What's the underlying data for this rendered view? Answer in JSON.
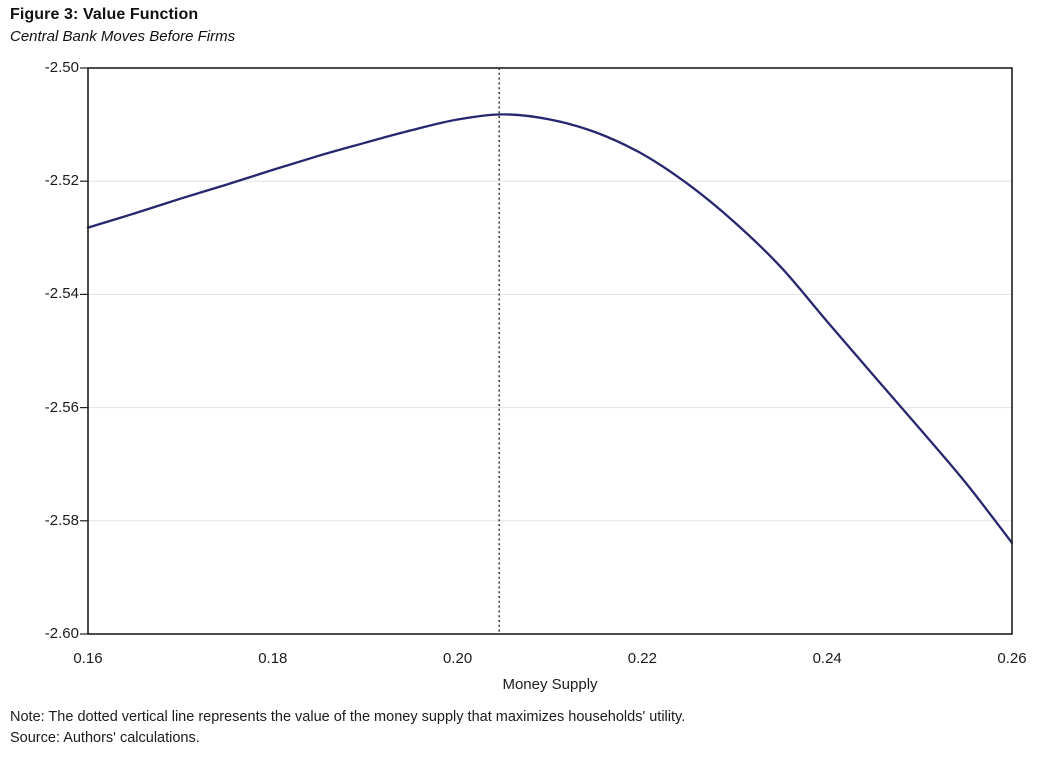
{
  "figure": {
    "title": "Figure 3: Value Function",
    "subtitle": "Central Bank Moves Before Firms",
    "note": "Note: The dotted vertical line represents the value of the money supply that maximizes households' utility.",
    "source": "Source: Authors' calculations."
  },
  "colors": {
    "curve": "#27276F",
    "axis": "#1f1f1f",
    "gridline": "#e3e3e3",
    "vline": "#1a1a1a",
    "text": "#1c1c1c",
    "background": "#ffffff"
  },
  "chart_data": {
    "type": "line",
    "title": "Figure 3: Value Function",
    "subtitle": "Central Bank Moves Before Firms",
    "xlabel": "Money Supply",
    "ylabel": "",
    "xlim": [
      0.16,
      0.26
    ],
    "ylim": [
      -2.6,
      -2.5
    ],
    "x_ticks": [
      0.16,
      0.18,
      0.2,
      0.22,
      0.24,
      0.26
    ],
    "x_tick_labels": [
      "0.16",
      "0.18",
      "0.20",
      "0.22",
      "0.24",
      "0.26"
    ],
    "y_ticks": [
      -2.5,
      -2.52,
      -2.54,
      -2.56,
      -2.58,
      -2.6
    ],
    "y_tick_labels": [
      "-2.50",
      "-2.52",
      "-2.54",
      "-2.56",
      "-2.58",
      "-2.60"
    ],
    "grid": "horizontal",
    "legend": "none",
    "vline": {
      "x": 0.2045,
      "style": "dotted"
    },
    "series": [
      {
        "name": "Value function",
        "color": "#27276F",
        "points": [
          [
            0.16,
            -2.5282
          ],
          [
            0.165,
            -2.5257
          ],
          [
            0.17,
            -2.5231
          ],
          [
            0.175,
            -2.5206
          ],
          [
            0.18,
            -2.518
          ],
          [
            0.185,
            -2.5155
          ],
          [
            0.19,
            -2.5132
          ],
          [
            0.195,
            -2.511
          ],
          [
            0.2,
            -2.5091
          ],
          [
            0.205,
            -2.5082
          ],
          [
            0.21,
            -2.5091
          ],
          [
            0.215,
            -2.5114
          ],
          [
            0.22,
            -2.5152
          ],
          [
            0.225,
            -2.5206
          ],
          [
            0.23,
            -2.5273
          ],
          [
            0.235,
            -2.5352
          ],
          [
            0.24,
            -2.5448
          ],
          [
            0.245,
            -2.5543
          ],
          [
            0.25,
            -2.5637
          ],
          [
            0.255,
            -2.5733
          ],
          [
            0.26,
            -2.5839
          ]
        ]
      }
    ]
  }
}
